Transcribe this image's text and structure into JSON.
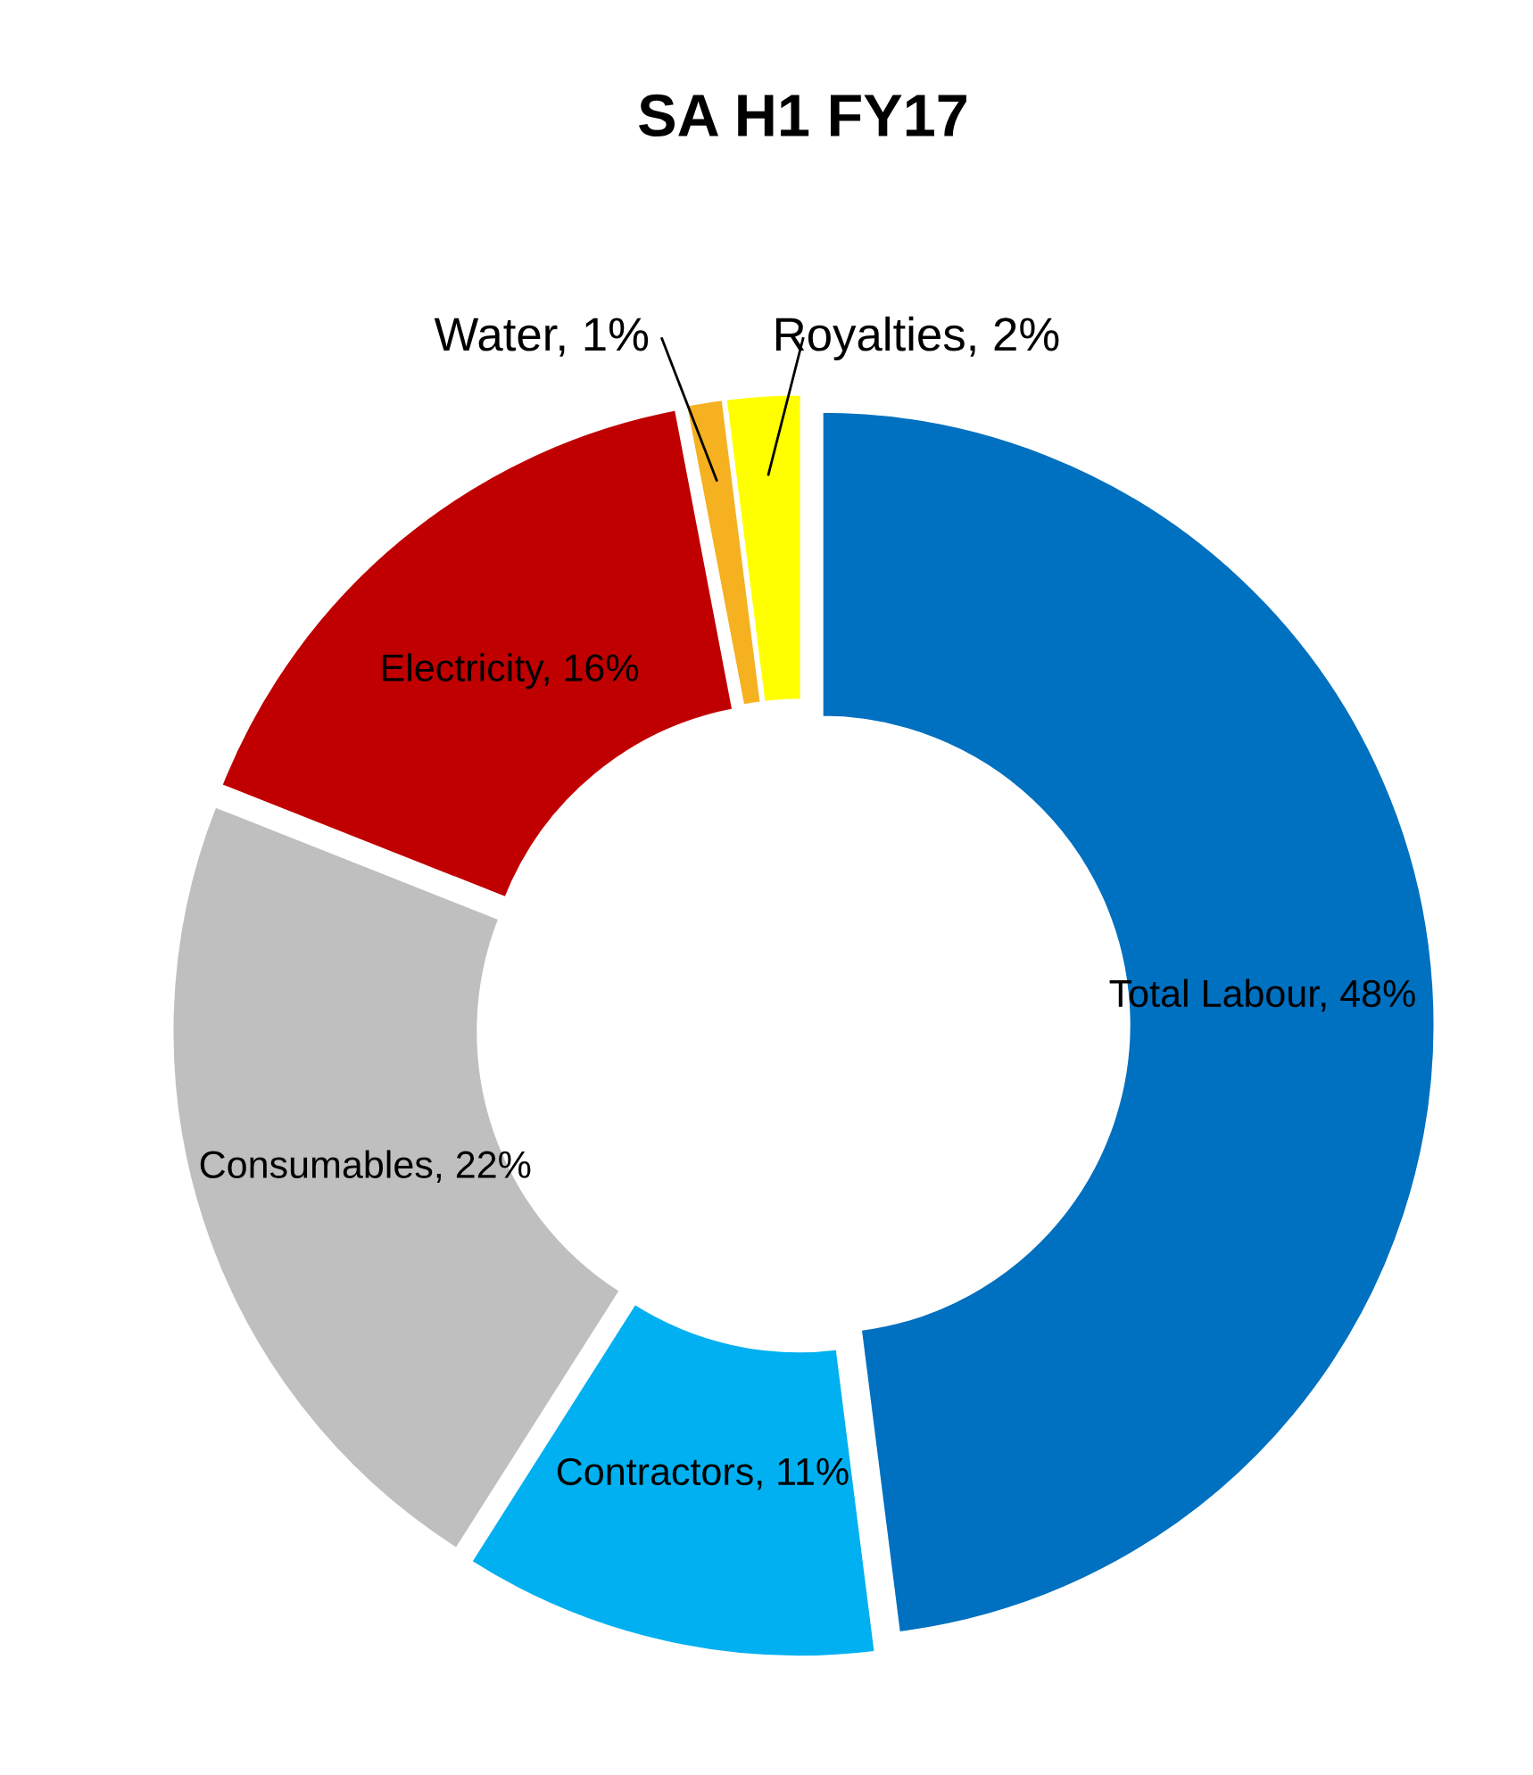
{
  "chart_data": {
    "type": "donut",
    "title": "SA H1 FY17",
    "categories": [
      "Total Labour",
      "Contractors",
      "Consumables",
      "Electricity",
      "Water",
      "Royalties"
    ],
    "values": [
      48,
      11,
      22,
      16,
      1,
      2
    ],
    "value_labels": [
      "48%",
      "11%",
      "22%",
      "16%",
      "1%",
      "2%"
    ],
    "colors": [
      "#0070c0",
      "#00b0f0",
      "#bfbfbf",
      "#c00000",
      "#f5b120",
      "#ffff00"
    ],
    "legend": false
  }
}
